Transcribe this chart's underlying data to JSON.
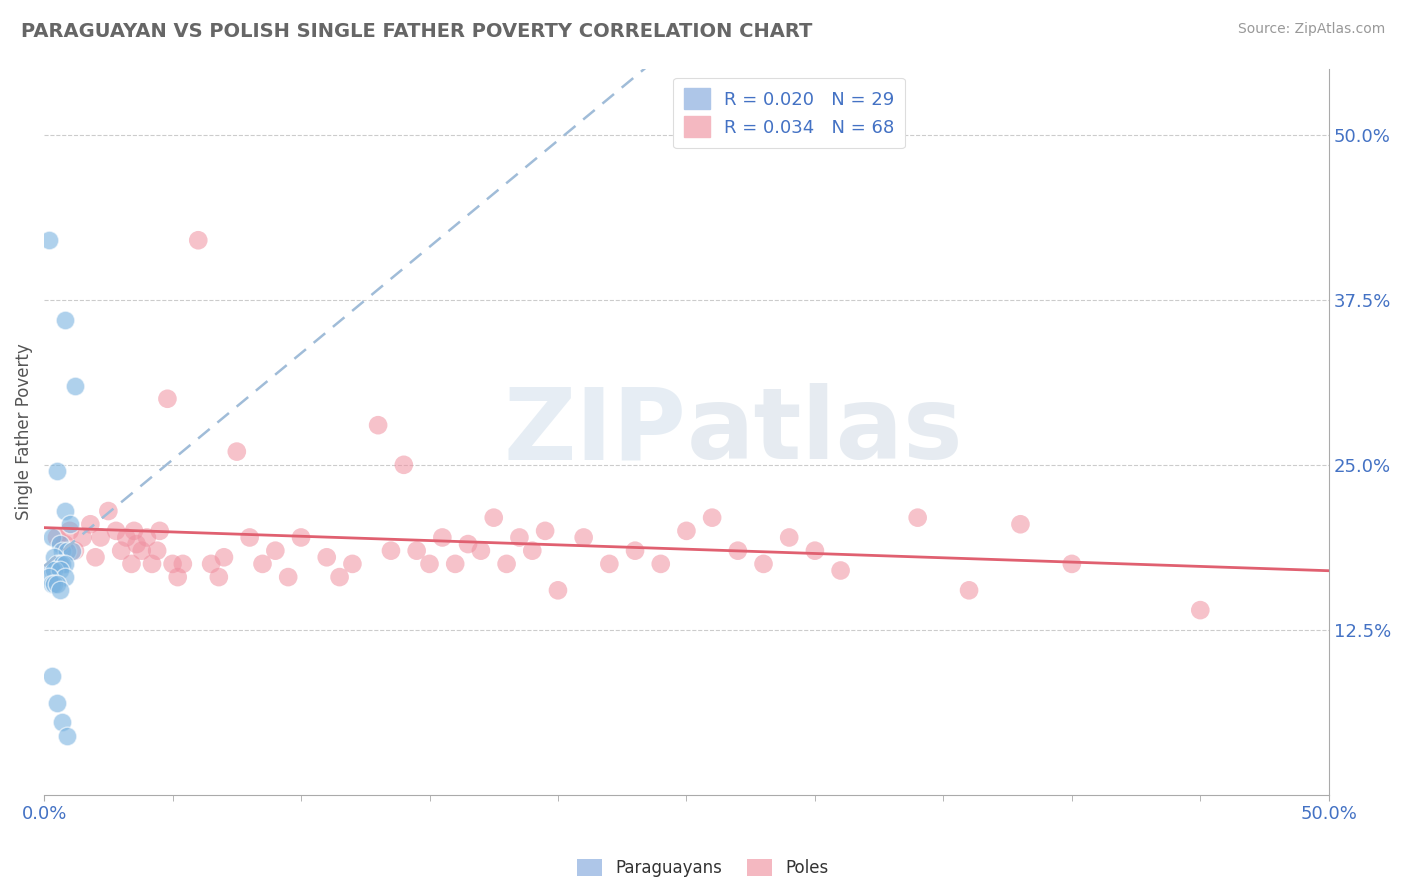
{
  "title": "PARAGUAYAN VS POLISH SINGLE FATHER POVERTY CORRELATION CHART",
  "source": "Source: ZipAtlas.com",
  "ylabel": "Single Father Poverty",
  "y_tick_labels": [
    "12.5%",
    "25.0%",
    "37.5%",
    "50.0%"
  ],
  "y_tick_values": [
    0.125,
    0.25,
    0.375,
    0.5
  ],
  "xlim": [
    0.0,
    0.5
  ],
  "ylim": [
    0.0,
    0.55
  ],
  "watermark": "ZIPatlas",
  "paraguayan_color": "#7ab3e0",
  "polish_color": "#f090a0",
  "paraguayan_line_color": "#a0bcd8",
  "polish_line_color": "#e06070",
  "paraguayan_scatter": [
    [
      0.002,
      0.42
    ],
    [
      0.008,
      0.36
    ],
    [
      0.012,
      0.31
    ],
    [
      0.005,
      0.245
    ],
    [
      0.008,
      0.215
    ],
    [
      0.01,
      0.205
    ],
    [
      0.003,
      0.195
    ],
    [
      0.006,
      0.19
    ],
    [
      0.007,
      0.185
    ],
    [
      0.009,
      0.185
    ],
    [
      0.011,
      0.185
    ],
    [
      0.004,
      0.18
    ],
    [
      0.005,
      0.175
    ],
    [
      0.006,
      0.175
    ],
    [
      0.007,
      0.175
    ],
    [
      0.008,
      0.175
    ],
    [
      0.003,
      0.17
    ],
    [
      0.004,
      0.17
    ],
    [
      0.006,
      0.17
    ],
    [
      0.008,
      0.165
    ],
    [
      0.002,
      0.165
    ],
    [
      0.003,
      0.16
    ],
    [
      0.004,
      0.16
    ],
    [
      0.005,
      0.16
    ],
    [
      0.006,
      0.155
    ],
    [
      0.003,
      0.09
    ],
    [
      0.005,
      0.07
    ],
    [
      0.007,
      0.055
    ],
    [
      0.009,
      0.045
    ]
  ],
  "polish_scatter": [
    [
      0.005,
      0.195
    ],
    [
      0.008,
      0.19
    ],
    [
      0.01,
      0.2
    ],
    [
      0.012,
      0.185
    ],
    [
      0.015,
      0.195
    ],
    [
      0.018,
      0.205
    ],
    [
      0.02,
      0.18
    ],
    [
      0.022,
      0.195
    ],
    [
      0.025,
      0.215
    ],
    [
      0.028,
      0.2
    ],
    [
      0.03,
      0.185
    ],
    [
      0.032,
      0.195
    ],
    [
      0.034,
      0.175
    ],
    [
      0.035,
      0.2
    ],
    [
      0.036,
      0.19
    ],
    [
      0.038,
      0.185
    ],
    [
      0.04,
      0.195
    ],
    [
      0.042,
      0.175
    ],
    [
      0.044,
      0.185
    ],
    [
      0.045,
      0.2
    ],
    [
      0.048,
      0.3
    ],
    [
      0.05,
      0.175
    ],
    [
      0.052,
      0.165
    ],
    [
      0.054,
      0.175
    ],
    [
      0.06,
      0.42
    ],
    [
      0.065,
      0.175
    ],
    [
      0.068,
      0.165
    ],
    [
      0.07,
      0.18
    ],
    [
      0.075,
      0.26
    ],
    [
      0.08,
      0.195
    ],
    [
      0.085,
      0.175
    ],
    [
      0.09,
      0.185
    ],
    [
      0.095,
      0.165
    ],
    [
      0.1,
      0.195
    ],
    [
      0.11,
      0.18
    ],
    [
      0.115,
      0.165
    ],
    [
      0.12,
      0.175
    ],
    [
      0.13,
      0.28
    ],
    [
      0.135,
      0.185
    ],
    [
      0.14,
      0.25
    ],
    [
      0.145,
      0.185
    ],
    [
      0.15,
      0.175
    ],
    [
      0.155,
      0.195
    ],
    [
      0.16,
      0.175
    ],
    [
      0.165,
      0.19
    ],
    [
      0.17,
      0.185
    ],
    [
      0.175,
      0.21
    ],
    [
      0.18,
      0.175
    ],
    [
      0.185,
      0.195
    ],
    [
      0.19,
      0.185
    ],
    [
      0.195,
      0.2
    ],
    [
      0.2,
      0.155
    ],
    [
      0.21,
      0.195
    ],
    [
      0.22,
      0.175
    ],
    [
      0.23,
      0.185
    ],
    [
      0.24,
      0.175
    ],
    [
      0.25,
      0.2
    ],
    [
      0.26,
      0.21
    ],
    [
      0.27,
      0.185
    ],
    [
      0.28,
      0.175
    ],
    [
      0.29,
      0.195
    ],
    [
      0.3,
      0.185
    ],
    [
      0.31,
      0.17
    ],
    [
      0.34,
      0.21
    ],
    [
      0.36,
      0.155
    ],
    [
      0.38,
      0.205
    ],
    [
      0.4,
      0.175
    ],
    [
      0.45,
      0.14
    ]
  ]
}
